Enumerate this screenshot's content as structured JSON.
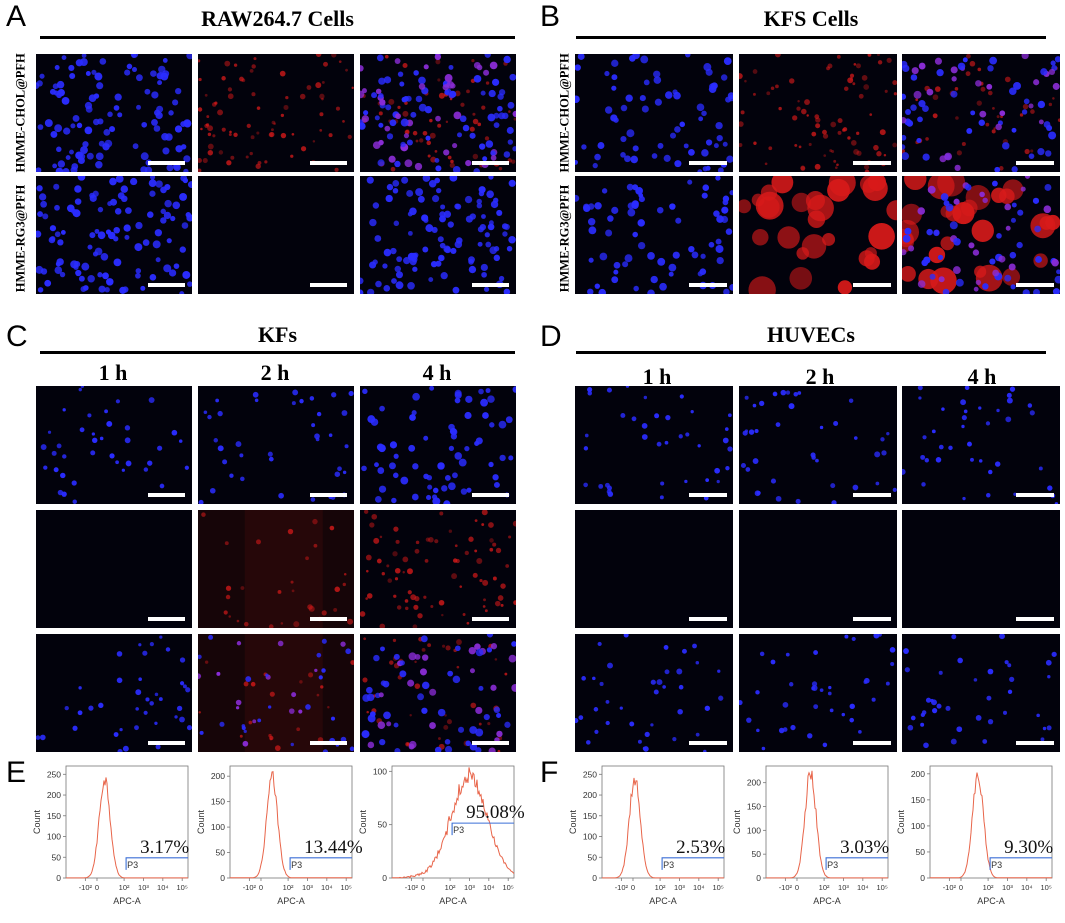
{
  "panel_letters": {
    "a": "A",
    "b": "B",
    "c": "C",
    "d": "D",
    "e": "E",
    "f": "F"
  },
  "panel_a": {
    "title": "RAW264.7  Cells",
    "rows": [
      {
        "label": "HMME-CHOL@PFH"
      },
      {
        "label": "HMME-RG3@PFH"
      }
    ],
    "images": [
      [
        "blue-dense",
        "red-faint",
        "merge-dense"
      ],
      [
        "blue-dense",
        "dark",
        "blue-dense"
      ]
    ]
  },
  "panel_b": {
    "title": "KFS Cells",
    "rows": [
      {
        "label": "HMME-CHOL@PFH"
      },
      {
        "label": "HMME-RG3@PFH"
      }
    ],
    "images": [
      [
        "blue-medium",
        "red-faint",
        "merge-medium"
      ],
      [
        "blue-medium",
        "red-strong",
        "merge-strong"
      ]
    ]
  },
  "panel_c": {
    "title": "KFs",
    "columns": [
      "1 h",
      "2 h",
      "4 h"
    ],
    "images": [
      [
        "blue-sparse",
        "blue-sparse",
        "blue-medium"
      ],
      [
        "dark",
        "red-haze",
        "red-faint"
      ],
      [
        "blue-sparse",
        "merge-haze",
        "merge-medium"
      ]
    ]
  },
  "panel_d": {
    "title": "HUVECs",
    "columns": [
      "1 h",
      "2 h",
      "4 h"
    ],
    "images": [
      [
        "blue-sparse",
        "blue-sparse",
        "blue-sparse"
      ],
      [
        "dark",
        "dark",
        "dark"
      ],
      [
        "blue-sparse",
        "blue-sparse",
        "blue-sparse"
      ]
    ]
  },
  "chart_data": [
    {
      "type": "line",
      "panel": "E",
      "series": "KFs 1 h",
      "xlabel": "APC-A",
      "ylabel": "Count",
      "yticks": [
        0,
        50,
        100,
        150,
        200,
        250
      ],
      "ylim": [
        0,
        270
      ],
      "xticks": [
        "-10²",
        "0",
        "10²",
        "10³",
        "10⁴",
        "10⁵"
      ],
      "gate": "P3",
      "percent": "3.17%",
      "peak_x": 10,
      "peak_count": 245
    },
    {
      "type": "line",
      "panel": "E",
      "series": "KFs 2 h",
      "xlabel": "APC-A",
      "ylabel": "Count",
      "yticks": [
        0,
        50,
        100,
        150,
        200
      ],
      "ylim": [
        0,
        220
      ],
      "xticks": [
        "-10²",
        "0",
        "10²",
        "10³",
        "10⁴",
        "10⁵"
      ],
      "gate": "P3",
      "percent": "13.44%",
      "peak_x": 15,
      "peak_count": 200
    },
    {
      "type": "line",
      "panel": "E",
      "series": "KFs 4 h",
      "xlabel": "APC-A",
      "ylabel": "Count",
      "yticks": [
        0,
        50,
        100
      ],
      "ylim": [
        0,
        105
      ],
      "xticks": [
        "-10²",
        "0",
        "10²",
        "10³",
        "10⁴",
        "10⁵"
      ],
      "gate": "P3",
      "percent": "95.08%",
      "peak_x": 1000,
      "peak_count": 95
    },
    {
      "type": "line",
      "panel": "F",
      "series": "HUVECs 1 h",
      "xlabel": "APC-A",
      "ylabel": "Count",
      "yticks": [
        0,
        50,
        100,
        150,
        200,
        250
      ],
      "ylim": [
        0,
        270
      ],
      "xticks": [
        "-10²",
        "0",
        "10²",
        "10³",
        "10⁴",
        "10⁵"
      ],
      "gate": "P3",
      "percent": "2.53%",
      "peak_x": 5,
      "peak_count": 245
    },
    {
      "type": "line",
      "panel": "F",
      "series": "HUVECs 2 h",
      "xlabel": "APC-A",
      "ylabel": "Count",
      "yticks": [
        0,
        50,
        100,
        150,
        200
      ],
      "ylim": [
        0,
        235
      ],
      "xticks": [
        "-10²",
        "0",
        "10²",
        "10³",
        "10⁴",
        "10⁵"
      ],
      "gate": "P3",
      "percent": "3.03%",
      "peak_x": 20,
      "peak_count": 225
    },
    {
      "type": "line",
      "panel": "F",
      "series": "HUVECs 4 h",
      "xlabel": "APC-A",
      "ylabel": "Count",
      "yticks": [
        0,
        50,
        100,
        150,
        200
      ],
      "ylim": [
        0,
        215
      ],
      "xticks": [
        "-10²",
        "0",
        "10²",
        "10³",
        "10⁴",
        "10⁵"
      ],
      "gate": "P3",
      "percent": "9.30%",
      "peak_x": 30,
      "peak_count": 205
    }
  ],
  "colors": {
    "histogram_line": "#e8654a",
    "gate_line": "#3b6fd6",
    "nuclei": "#2a2cff",
    "dye": "#e01818"
  }
}
